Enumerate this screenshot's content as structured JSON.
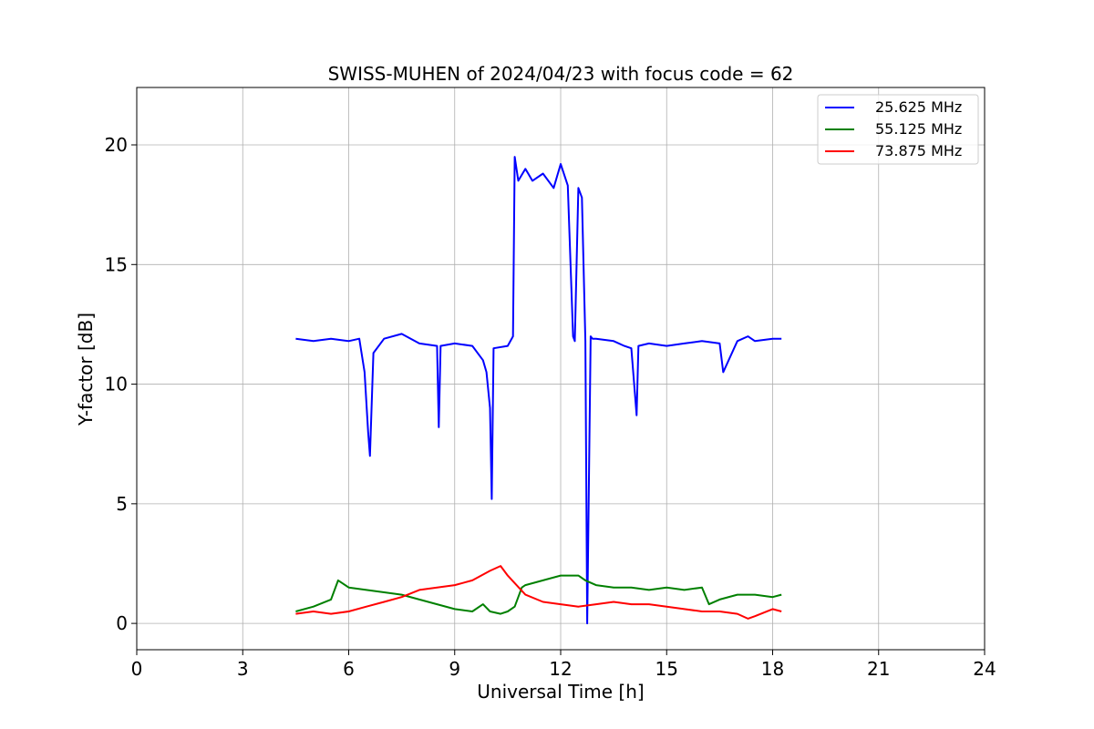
{
  "chart_data": {
    "type": "line",
    "title": "SWISS-MUHEN of 2024/04/23 with focus code = 62",
    "xlabel": "Universal Time [h]",
    "ylabel": "Y-factor [dB]",
    "xlim": [
      0,
      24
    ],
    "ylim": [
      -1.1,
      22.4
    ],
    "xticks": [
      0,
      3,
      6,
      9,
      12,
      15,
      18,
      21,
      24
    ],
    "xtick_labels": [
      "0",
      "3",
      "6",
      "9",
      "12",
      "15",
      "18",
      "21",
      "24"
    ],
    "yticks": [
      0,
      5,
      10,
      15,
      20
    ],
    "ytick_labels": [
      "0",
      "5",
      "10",
      "15",
      "20"
    ],
    "grid": true,
    "legend_position": "top-right",
    "series": [
      {
        "name": "25.625 MHz",
        "color": "#0000ff",
        "x": [
          4.5,
          5.0,
          5.5,
          6.0,
          6.3,
          6.45,
          6.55,
          6.6,
          6.7,
          7.0,
          7.5,
          8.0,
          8.5,
          8.55,
          8.6,
          9.0,
          9.5,
          9.8,
          9.9,
          10.0,
          10.05,
          10.1,
          10.5,
          10.65,
          10.7,
          10.8,
          11.0,
          11.2,
          11.5,
          11.8,
          12.0,
          12.2,
          12.35,
          12.4,
          12.5,
          12.6,
          12.7,
          12.75,
          12.8,
          12.85,
          12.9,
          13.0,
          13.5,
          13.8,
          14.0,
          14.15,
          14.2,
          14.5,
          15.0,
          15.5,
          16.0,
          16.5,
          16.6,
          17.0,
          17.3,
          17.5,
          18.0,
          18.25
        ],
        "y": [
          11.9,
          11.8,
          11.9,
          11.8,
          11.9,
          10.5,
          8.0,
          7.0,
          11.3,
          11.9,
          12.1,
          11.7,
          11.6,
          8.2,
          11.6,
          11.7,
          11.6,
          11.0,
          10.5,
          9.0,
          5.2,
          11.5,
          11.6,
          12.0,
          19.5,
          18.5,
          19.0,
          18.5,
          18.8,
          18.2,
          19.2,
          18.3,
          12.0,
          11.8,
          18.2,
          17.8,
          11.8,
          0.0,
          6.0,
          12.0,
          11.9,
          11.9,
          11.8,
          11.6,
          11.5,
          8.7,
          11.6,
          11.7,
          11.6,
          11.7,
          11.8,
          11.7,
          10.5,
          11.8,
          12.0,
          11.8,
          11.9,
          11.9
        ]
      },
      {
        "name": "55.125 MHz",
        "color": "#008000",
        "x": [
          4.5,
          5.0,
          5.5,
          5.7,
          6.0,
          6.5,
          7.0,
          7.5,
          8.0,
          8.5,
          9.0,
          9.5,
          9.8,
          10.0,
          10.3,
          10.5,
          10.7,
          10.9,
          11.0,
          11.5,
          12.0,
          12.5,
          12.7,
          13.0,
          13.5,
          14.0,
          14.5,
          15.0,
          15.5,
          16.0,
          16.2,
          16.5,
          17.0,
          17.5,
          18.0,
          18.25
        ],
        "y": [
          0.5,
          0.7,
          1.0,
          1.8,
          1.5,
          1.4,
          1.3,
          1.2,
          1.0,
          0.8,
          0.6,
          0.5,
          0.8,
          0.5,
          0.4,
          0.5,
          0.7,
          1.5,
          1.6,
          1.8,
          2.0,
          2.0,
          1.8,
          1.6,
          1.5,
          1.5,
          1.4,
          1.5,
          1.4,
          1.5,
          0.8,
          1.0,
          1.2,
          1.2,
          1.1,
          1.2
        ]
      },
      {
        "name": "73.875 MHz",
        "color": "#ff0000",
        "x": [
          4.5,
          5.0,
          5.5,
          6.0,
          6.5,
          7.0,
          7.5,
          8.0,
          8.5,
          9.0,
          9.5,
          10.0,
          10.3,
          10.5,
          11.0,
          11.5,
          12.0,
          12.5,
          13.0,
          13.5,
          14.0,
          14.5,
          15.0,
          15.5,
          16.0,
          16.5,
          17.0,
          17.3,
          17.5,
          18.0,
          18.25
        ],
        "y": [
          0.4,
          0.5,
          0.4,
          0.5,
          0.7,
          0.9,
          1.1,
          1.4,
          1.5,
          1.6,
          1.8,
          2.2,
          2.4,
          2.0,
          1.2,
          0.9,
          0.8,
          0.7,
          0.8,
          0.9,
          0.8,
          0.8,
          0.7,
          0.6,
          0.5,
          0.5,
          0.4,
          0.2,
          0.3,
          0.6,
          0.5
        ]
      }
    ]
  }
}
